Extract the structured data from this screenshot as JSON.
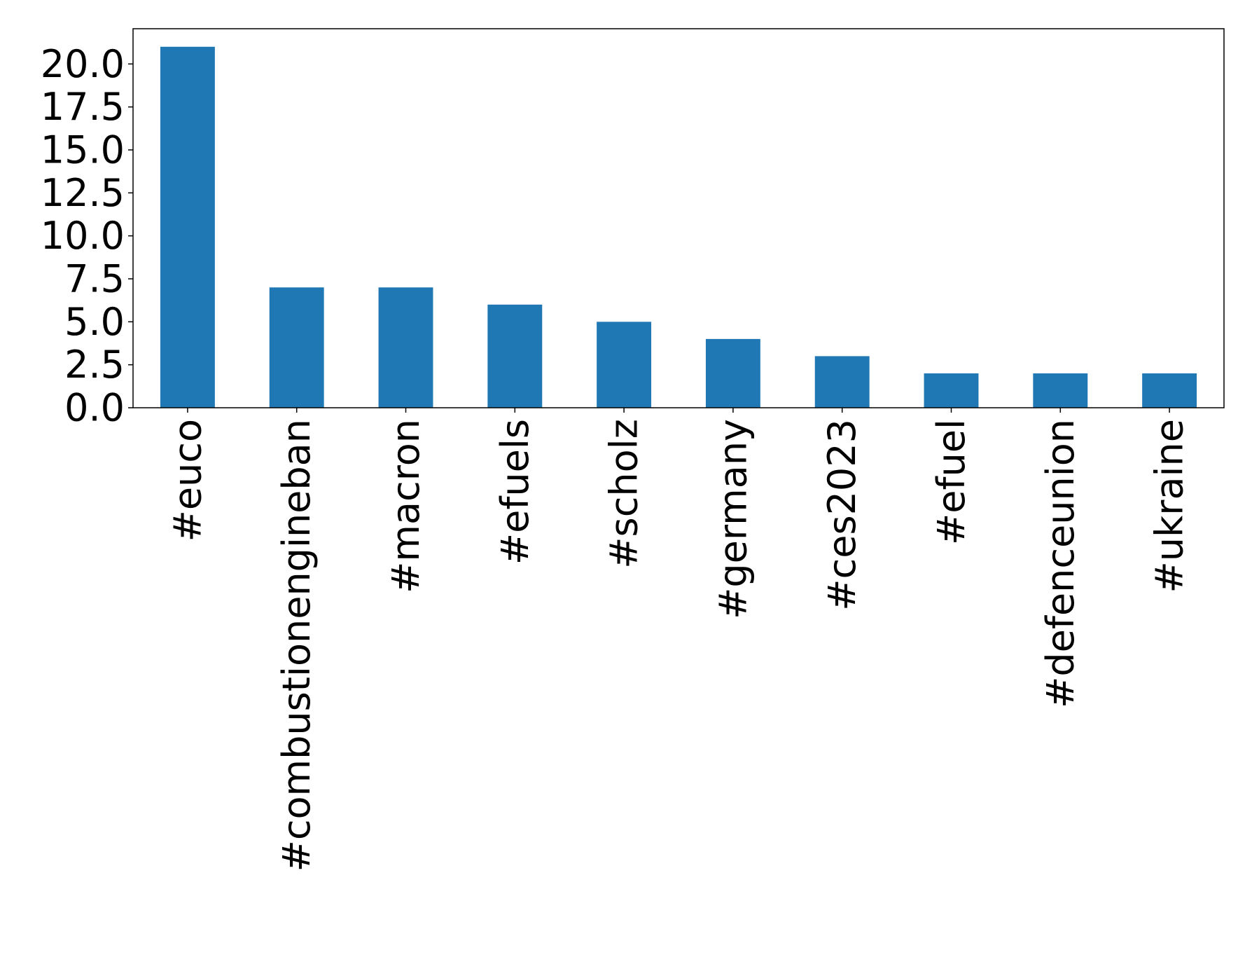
{
  "chart_data": {
    "type": "bar",
    "title": "",
    "xlabel": "",
    "ylabel": "",
    "categories": [
      "#euco",
      "#combustionengineban",
      "#macron",
      "#efuels",
      "#scholz",
      "#germany",
      "#ces2023",
      "#efuel",
      "#defenceunion",
      "#ukraine"
    ],
    "values": [
      21,
      7,
      7,
      6,
      5,
      4,
      3,
      2,
      2,
      2
    ],
    "ylim": [
      0,
      22.05
    ],
    "yticks": [
      "0.0",
      "2.5",
      "5.0",
      "7.5",
      "10.0",
      "12.5",
      "15.0",
      "17.5",
      "20.0"
    ],
    "ytick_values": [
      0,
      2.5,
      5,
      7.5,
      10,
      12.5,
      15,
      17.5,
      20
    ],
    "bar_color": "#1f77b4",
    "grid": false,
    "legend": "none"
  }
}
